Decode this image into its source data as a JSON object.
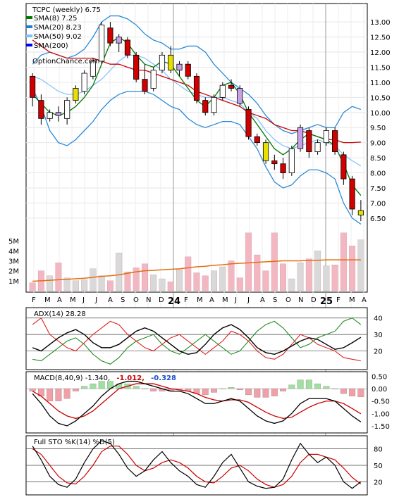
{
  "chart_data": [
    {
      "type": "candlestick",
      "name": "price-panel",
      "title": "TCPC (weekly) 6.75",
      "watermark": "OptionChance.com",
      "legend": [
        {
          "label": "SMA(8) 7.25",
          "color": "#007700"
        },
        {
          "label": "SMA(20) 8.23",
          "color": "#1a7fd4"
        },
        {
          "label": "SMA(50) 9.02",
          "color": "#7fbfff"
        },
        {
          "label": "SMA(200)",
          "color": "#0000ff"
        }
      ],
      "ylim": [
        6.1,
        13.4
      ],
      "y_ticks": [
        "13.00",
        "12.50",
        "12.00",
        "11.50",
        "11.00",
        "10.50",
        "10.00",
        "9.50",
        "9.00",
        "8.50",
        "8.00",
        "7.50",
        "7.00",
        "6.50"
      ],
      "x_labels": [
        "F",
        "M",
        "A",
        "M",
        "J",
        "J",
        "A",
        "S",
        "O",
        "N",
        "D",
        "24",
        "F",
        "M",
        "A",
        "M",
        "J",
        "J",
        "A",
        "S",
        "O",
        "N",
        "D",
        "25",
        "F",
        "M",
        "A"
      ],
      "sma8": [
        10.6,
        10.3,
        10.0,
        9.9,
        10.0,
        10.2,
        10.5,
        10.9,
        11.6,
        12.3,
        12.5,
        12.3,
        11.9,
        11.6,
        11.5,
        11.7,
        11.6,
        11.2,
        10.8,
        10.4,
        10.2,
        10.5,
        10.9,
        11.0,
        10.6,
        10.0,
        9.6,
        9.2,
        8.8,
        8.6,
        8.8,
        9.1,
        9.3,
        9.2,
        9.1,
        8.9,
        8.3,
        7.6,
        7.25
      ],
      "sma20": [
        11.2,
        11.1,
        10.9,
        10.7,
        10.6,
        10.6,
        10.7,
        10.9,
        11.1,
        11.4,
        11.7,
        11.9,
        11.9,
        11.8,
        11.6,
        11.4,
        11.1,
        10.9,
        10.7,
        10.6,
        10.5,
        10.5,
        10.5,
        10.4,
        10.3,
        10.0,
        9.8,
        9.4,
        9.1,
        8.9,
        8.8,
        8.9,
        9.0,
        9.1,
        9.0,
        8.9,
        8.6,
        8.4,
        8.23
      ],
      "bb_upper": [
        11.6,
        11.9,
        12.0,
        11.9,
        11.8,
        11.9,
        12.1,
        12.5,
        13.0,
        13.2,
        13.2,
        13.1,
        12.9,
        12.6,
        12.4,
        12.3,
        12.1,
        12.1,
        12.2,
        12.2,
        12.0,
        11.6,
        11.3,
        11.0,
        10.8,
        10.6,
        10.3,
        9.9,
        9.6,
        9.4,
        9.3,
        9.4,
        9.5,
        9.6,
        9.5,
        9.5,
        10.0,
        10.2,
        10.1
      ],
      "bb_lower": [
        10.8,
        10.2,
        9.4,
        9.0,
        8.9,
        9.1,
        9.4,
        9.7,
        10.1,
        10.4,
        10.6,
        10.7,
        10.7,
        10.7,
        10.6,
        10.4,
        10.2,
        10.1,
        9.8,
        9.6,
        9.5,
        9.6,
        9.7,
        9.7,
        9.6,
        9.2,
        8.8,
        8.2,
        7.7,
        7.5,
        7.6,
        7.9,
        8.1,
        8.1,
        8.0,
        7.8,
        7.0,
        6.5,
        6.3
      ],
      "sma50": [
        12.4,
        12.2,
        12.0,
        11.9,
        11.8,
        11.8,
        11.8,
        11.8,
        11.7,
        11.6,
        11.6,
        11.5,
        11.4,
        11.4,
        11.3,
        11.2,
        11.1,
        11.0,
        10.9,
        10.7,
        10.6,
        10.5,
        10.4,
        10.3,
        10.2,
        10.0,
        9.9,
        9.8,
        9.6,
        9.5,
        9.4,
        9.4,
        9.3,
        9.2,
        9.1,
        9.1,
        9.0,
        9.0,
        9.02
      ],
      "candles": [
        {
          "o": 11.2,
          "h": 11.3,
          "l": 10.2,
          "c": 10.5
        },
        {
          "o": 10.4,
          "h": 10.6,
          "l": 9.6,
          "c": 9.8
        },
        {
          "o": 9.8,
          "h": 10.1,
          "l": 9.7,
          "c": 10.0
        },
        {
          "o": 10.0,
          "h": 10.2,
          "l": 9.7,
          "c": 9.9
        },
        {
          "o": 9.8,
          "h": 10.5,
          "l": 9.6,
          "c": 10.4
        },
        {
          "o": 10.4,
          "h": 10.9,
          "l": 10.3,
          "c": 10.8
        },
        {
          "o": 10.7,
          "h": 11.4,
          "l": 10.6,
          "c": 11.3
        },
        {
          "o": 11.2,
          "h": 11.8,
          "l": 11.1,
          "c": 11.7
        },
        {
          "o": 11.7,
          "h": 13.0,
          "l": 11.6,
          "c": 12.9
        },
        {
          "o": 12.8,
          "h": 13.0,
          "l": 12.2,
          "c": 12.3
        },
        {
          "o": 12.3,
          "h": 12.6,
          "l": 12.0,
          "c": 12.5
        },
        {
          "o": 12.4,
          "h": 12.5,
          "l": 11.8,
          "c": 11.9
        },
        {
          "o": 11.9,
          "h": 12.0,
          "l": 11.0,
          "c": 11.1
        },
        {
          "o": 11.1,
          "h": 11.6,
          "l": 10.6,
          "c": 10.7
        },
        {
          "o": 10.8,
          "h": 11.5,
          "l": 10.7,
          "c": 11.4
        },
        {
          "o": 11.4,
          "h": 12.0,
          "l": 11.3,
          "c": 11.9
        },
        {
          "o": 11.9,
          "h": 12.2,
          "l": 11.3,
          "c": 11.4
        },
        {
          "o": 11.4,
          "h": 11.7,
          "l": 11.2,
          "c": 11.6
        },
        {
          "o": 11.6,
          "h": 11.7,
          "l": 11.1,
          "c": 11.2
        },
        {
          "o": 11.2,
          "h": 11.3,
          "l": 10.3,
          "c": 10.4
        },
        {
          "o": 10.4,
          "h": 10.5,
          "l": 9.9,
          "c": 10.0
        },
        {
          "o": 10.0,
          "h": 10.6,
          "l": 9.9,
          "c": 10.5
        },
        {
          "o": 10.5,
          "h": 11.0,
          "l": 10.4,
          "c": 10.9
        },
        {
          "o": 10.9,
          "h": 11.1,
          "l": 10.7,
          "c": 10.8
        },
        {
          "o": 10.8,
          "h": 10.9,
          "l": 10.2,
          "c": 10.3
        },
        {
          "o": 10.1,
          "h": 10.2,
          "l": 9.1,
          "c": 9.2
        },
        {
          "o": 9.2,
          "h": 9.3,
          "l": 8.9,
          "c": 9.0
        },
        {
          "o": 9.0,
          "h": 9.1,
          "l": 8.3,
          "c": 8.4
        },
        {
          "o": 8.4,
          "h": 8.6,
          "l": 8.1,
          "c": 8.3
        },
        {
          "o": 8.3,
          "h": 8.5,
          "l": 7.8,
          "c": 8.0
        },
        {
          "o": 8.0,
          "h": 8.9,
          "l": 7.9,
          "c": 8.8
        },
        {
          "o": 8.8,
          "h": 9.6,
          "l": 8.7,
          "c": 9.5
        },
        {
          "o": 9.4,
          "h": 9.5,
          "l": 8.5,
          "c": 8.7
        },
        {
          "o": 8.7,
          "h": 9.1,
          "l": 8.6,
          "c": 9.0
        },
        {
          "o": 9.0,
          "h": 9.5,
          "l": 8.9,
          "c": 9.4
        },
        {
          "o": 9.4,
          "h": 9.5,
          "l": 8.6,
          "c": 8.7
        },
        {
          "o": 8.6,
          "h": 8.7,
          "l": 7.6,
          "c": 7.8
        },
        {
          "o": 7.8,
          "h": 7.9,
          "l": 6.6,
          "c": 6.8
        },
        {
          "o": 6.6,
          "h": 7.1,
          "l": 6.4,
          "c": 6.75
        }
      ],
      "volume_ylim": [
        0,
        6
      ],
      "volume_ticks": [
        "5M",
        "4M",
        "3M",
        "2M",
        "1M"
      ],
      "volume": [
        0.8,
        2.0,
        1.5,
        2.8,
        1.3,
        1.0,
        1.1,
        2.2,
        1.5,
        1.0,
        3.8,
        1.9,
        2.3,
        2.7,
        1.6,
        1.2,
        0.9,
        2.1,
        3.4,
        1.8,
        1.5,
        2.0,
        2.4,
        3.0,
        1.3,
        5.8,
        3.6,
        2.0,
        5.8,
        2.7,
        1.2,
        2.8,
        3.2,
        4.0,
        2.5,
        2.6,
        5.8,
        4.5,
        5.1
      ],
      "volume_avg": [
        0.95,
        1.0,
        1.05,
        1.1,
        1.15,
        1.2,
        1.25,
        1.35,
        1.45,
        1.5,
        1.6,
        1.75,
        1.9,
        2.0,
        2.05,
        2.1,
        2.15,
        2.2,
        2.3,
        2.4,
        2.45,
        2.55,
        2.6,
        2.7,
        2.75,
        2.8,
        2.85,
        2.9,
        2.95,
        3.0,
        3.0,
        3.0,
        3.05,
        3.05,
        3.1,
        3.1,
        3.1,
        3.1,
        3.1
      ]
    },
    {
      "type": "line",
      "name": "adx-panel",
      "label": "ADX(14) 28.28",
      "ylim": [
        10,
        45
      ],
      "y_ticks": [
        "40",
        "30",
        "20"
      ],
      "adx": [
        22,
        20,
        24,
        28,
        31,
        33,
        30,
        25,
        22,
        22,
        24,
        28,
        32,
        34,
        32,
        28,
        24,
        20,
        18,
        19,
        24,
        30,
        34,
        36,
        33,
        28,
        22,
        19,
        18,
        20,
        23,
        26,
        28,
        27,
        24,
        21,
        22,
        25,
        28.28
      ],
      "plus_di": [
        36,
        40,
        30,
        26,
        22,
        20,
        25,
        30,
        34,
        38,
        36,
        30,
        26,
        22,
        20,
        24,
        28,
        30,
        26,
        22,
        18,
        22,
        26,
        32,
        30,
        26,
        20,
        16,
        15,
        18,
        24,
        30,
        28,
        24,
        22,
        20,
        16,
        15,
        14
      ],
      "minus_di": [
        15,
        14,
        18,
        22,
        26,
        28,
        24,
        18,
        14,
        12,
        16,
        22,
        26,
        28,
        30,
        24,
        20,
        18,
        22,
        26,
        30,
        26,
        22,
        18,
        20,
        26,
        32,
        36,
        38,
        34,
        28,
        22,
        24,
        28,
        30,
        32,
        38,
        40,
        36
      ]
    },
    {
      "type": "line",
      "name": "macd-panel",
      "label": "MACD(8,40,9) -1.340,",
      "value_red": "-1.012,",
      "value_blue": "-0.328",
      "ylim": [
        -1.7,
        0.6
      ],
      "y_ticks": [
        "0.50",
        "0.00",
        "-0.50",
        "-1.00",
        "-1.50"
      ],
      "macd": [
        -0.2,
        -0.6,
        -1.1,
        -1.4,
        -1.5,
        -1.3,
        -1.0,
        -0.7,
        -0.3,
        0.0,
        0.2,
        0.3,
        0.3,
        0.2,
        0.1,
        0.0,
        -0.1,
        -0.1,
        -0.2,
        -0.4,
        -0.6,
        -0.6,
        -0.5,
        -0.4,
        -0.5,
        -0.8,
        -1.1,
        -1.3,
        -1.4,
        -1.3,
        -1.0,
        -0.6,
        -0.4,
        -0.4,
        -0.4,
        -0.5,
        -0.8,
        -1.1,
        -1.34
      ],
      "signal": [
        -0.1,
        -0.3,
        -0.6,
        -0.9,
        -1.1,
        -1.2,
        -1.1,
        -0.9,
        -0.6,
        -0.3,
        0.0,
        0.1,
        0.2,
        0.2,
        0.2,
        0.1,
        0.0,
        -0.05,
        -0.1,
        -0.2,
        -0.35,
        -0.45,
        -0.5,
        -0.45,
        -0.45,
        -0.55,
        -0.75,
        -0.95,
        -1.1,
        -1.2,
        -1.15,
        -0.95,
        -0.75,
        -0.6,
        -0.5,
        -0.5,
        -0.6,
        -0.8,
        -1.012
      ]
    },
    {
      "type": "line",
      "name": "stochastic-panel",
      "label": "Full STO %K(14) %D(5)",
      "ylim": [
        0,
        100
      ],
      "y_ticks": [
        "80",
        "50",
        "20"
      ],
      "k": [
        85,
        60,
        30,
        15,
        10,
        25,
        55,
        80,
        95,
        90,
        70,
        45,
        30,
        40,
        60,
        75,
        55,
        40,
        30,
        15,
        10,
        30,
        55,
        70,
        45,
        20,
        12,
        8,
        10,
        25,
        60,
        90,
        70,
        55,
        65,
        50,
        20,
        8,
        20
      ],
      "d": [
        80,
        70,
        50,
        30,
        18,
        16,
        30,
        50,
        75,
        85,
        85,
        70,
        50,
        40,
        45,
        55,
        60,
        55,
        45,
        30,
        20,
        18,
        30,
        45,
        50,
        40,
        25,
        15,
        10,
        15,
        30,
        55,
        70,
        70,
        65,
        60,
        45,
        28,
        16
      ]
    }
  ]
}
